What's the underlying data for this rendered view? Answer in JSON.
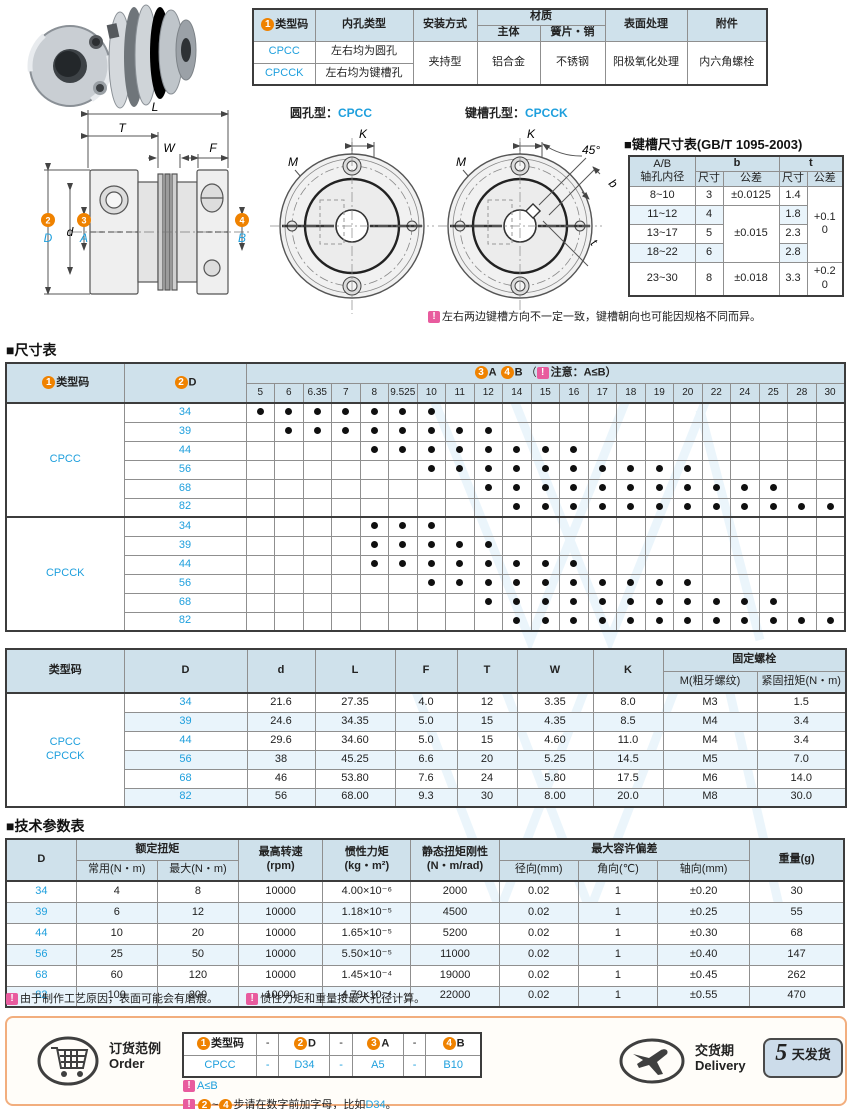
{
  "spec_table": {
    "badge1": "1",
    "h_type": "类型码",
    "h_bore": "内孔类型",
    "h_mount": "安装方式",
    "h_material": "材质",
    "h_body": "主体",
    "h_spring": "簧片・销",
    "h_surface": "表面处理",
    "h_accessory": "附件",
    "row1_code": "CPCC",
    "row1_bore": "左右均为圆孔",
    "row2_code": "CPCCK",
    "row2_bore": "左右均为键槽孔",
    "mount": "夹持型",
    "body": "铝合金",
    "spring": "不锈钢",
    "surface": "阳极氧化处理",
    "accessory": "内六角螺栓"
  },
  "diagrams": {
    "round_label": "圆孔型：",
    "round_code": "CPCC",
    "key_label": "键槽孔型：",
    "key_code": "CPCCK",
    "L": "L",
    "T": "T",
    "W": "W",
    "F": "F",
    "d": "d",
    "D": "D",
    "A": "A",
    "B": "B",
    "M": "M",
    "K": "K",
    "deg45": "45°",
    "b": "b",
    "t": "t",
    "n2": "2",
    "n3": "3",
    "n4": "4"
  },
  "keyway_table": {
    "title": "■键槽尺寸表(GB/T 1095-2003)",
    "h_col1": "A/B\n轴孔内径",
    "h_b": "b",
    "h_t": "t",
    "h_size": "尺寸",
    "h_tol": "公差",
    "rows": [
      {
        "range": "8~10",
        "b": "3",
        "t": "1.4"
      },
      {
        "range": "11~12",
        "b": "4",
        "t": "1.8"
      },
      {
        "range": "13~17",
        "b": "5",
        "t": "2.3"
      },
      {
        "range": "18~22",
        "b": "6",
        "t": "2.8"
      },
      {
        "range": "23~30",
        "b": "8",
        "t": "3.3"
      }
    ],
    "b_tol_1": "±0.0125",
    "b_tol_2": "±0.015",
    "b_tol_3": "±0.018",
    "t_tol_1": "+0.1\n0",
    "t_tol_2": "+0.2\n0"
  },
  "keyway_note": {
    "icon": "!",
    "text": "左右两边键槽方向不一定一致，键槽朝向也可能因规格不同而异。"
  },
  "size_table": {
    "title": "■尺寸表",
    "badge1": "1",
    "badge2": "2",
    "badge3": "3",
    "badge4": "4",
    "h_type": "类型码",
    "h_d": "D",
    "ab_a": "A",
    "ab_b": "B",
    "ab_paren": "（",
    "ab_icon": "!",
    "ab_note": "注意：A≤B）",
    "bores": [
      "5",
      "6",
      "6.35",
      "7",
      "8",
      "9.525",
      "10",
      "11",
      "12",
      "14",
      "15",
      "16",
      "17",
      "18",
      "19",
      "20",
      "22",
      "24",
      "25",
      "28",
      "30"
    ],
    "groups": [
      {
        "code": "CPCC",
        "rows": [
          {
            "d": "34",
            "available": [
              "5",
              "6",
              "6.35",
              "7",
              "8",
              "9.525",
              "10"
            ]
          },
          {
            "d": "39",
            "available": [
              "6",
              "6.35",
              "7",
              "8",
              "9.525",
              "10",
              "11",
              "12"
            ]
          },
          {
            "d": "44",
            "available": [
              "8",
              "9.525",
              "10",
              "11",
              "12",
              "14",
              "15",
              "16"
            ]
          },
          {
            "d": "56",
            "available": [
              "10",
              "11",
              "12",
              "14",
              "15",
              "16",
              "17",
              "18",
              "19",
              "20"
            ]
          },
          {
            "d": "68",
            "available": [
              "12",
              "14",
              "15",
              "16",
              "17",
              "18",
              "19",
              "20",
              "22",
              "24",
              "25"
            ]
          },
          {
            "d": "82",
            "available": [
              "14",
              "15",
              "16",
              "17",
              "18",
              "19",
              "20",
              "22",
              "24",
              "25",
              "28",
              "30"
            ]
          }
        ]
      },
      {
        "code": "CPCCK",
        "rows": [
          {
            "d": "34",
            "available": [
              "8",
              "9.525",
              "10"
            ]
          },
          {
            "d": "39",
            "available": [
              "8",
              "9.525",
              "10",
              "11",
              "12"
            ]
          },
          {
            "d": "44",
            "available": [
              "8",
              "9.525",
              "10",
              "11",
              "12",
              "14",
              "15",
              "16"
            ]
          },
          {
            "d": "56",
            "available": [
              "10",
              "11",
              "12",
              "14",
              "15",
              "16",
              "17",
              "18",
              "19",
              "20"
            ]
          },
          {
            "d": "68",
            "available": [
              "12",
              "14",
              "15",
              "16",
              "17",
              "18",
              "19",
              "20",
              "22",
              "24",
              "25"
            ]
          },
          {
            "d": "82",
            "available": [
              "14",
              "15",
              "16",
              "17",
              "18",
              "19",
              "20",
              "22",
              "24",
              "25",
              "28",
              "30"
            ]
          }
        ]
      }
    ]
  },
  "dim_table": {
    "h_type": "类型码",
    "h_cols": [
      "D",
      "d",
      "L",
      "F",
      "T",
      "W",
      "K"
    ],
    "h_bolt": "固定螺栓",
    "h_bolt_m": "M(粗牙螺纹)",
    "h_bolt_tq": "紧固扭矩(N・m)",
    "type_code": "CPCC\nCPCCK",
    "rows": [
      [
        "34",
        "21.6",
        "27.35",
        "4.0",
        "12",
        "3.35",
        "8.0",
        "M3",
        "1.5"
      ],
      [
        "39",
        "24.6",
        "34.35",
        "5.0",
        "15",
        "4.35",
        "8.5",
        "M4",
        "3.4"
      ],
      [
        "44",
        "29.6",
        "34.60",
        "5.0",
        "15",
        "4.60",
        "11.0",
        "M4",
        "3.4"
      ],
      [
        "56",
        "38",
        "45.25",
        "6.6",
        "20",
        "5.25",
        "14.5",
        "M5",
        "7.0"
      ],
      [
        "68",
        "46",
        "53.80",
        "7.6",
        "24",
        "5.80",
        "17.5",
        "M6",
        "14.0"
      ],
      [
        "82",
        "56",
        "68.00",
        "9.3",
        "30",
        "8.00",
        "20.0",
        "M8",
        "30.0"
      ]
    ]
  },
  "tech_table": {
    "title": "■技术参数表",
    "h_d": "D",
    "h_torque": "额定扭矩",
    "h_torque_normal": "常用(N・m)",
    "h_torque_max": "最大(N・m)",
    "h_speed": "最高转速\n(rpm)",
    "h_inertia": "惯性力矩\n(kg・m²)",
    "h_stiff": "静态扭矩刚性\n(N・m/rad)",
    "h_dev": "最大容许偏差",
    "h_radial": "径向(mm)",
    "h_angular": "角向(℃)",
    "h_axial": "轴向(mm)",
    "h_weight": "重量(g)",
    "rows": [
      [
        "34",
        "4",
        "8",
        "10000",
        "4.00×10⁻⁶",
        "2000",
        "0.02",
        "1",
        "±0.20",
        "30"
      ],
      [
        "39",
        "6",
        "12",
        "10000",
        "1.18×10⁻⁵",
        "4500",
        "0.02",
        "1",
        "±0.25",
        "55"
      ],
      [
        "44",
        "10",
        "20",
        "10000",
        "1.65×10⁻⁵",
        "5200",
        "0.02",
        "1",
        "±0.30",
        "68"
      ],
      [
        "56",
        "25",
        "50",
        "10000",
        "5.50×10⁻⁵",
        "11000",
        "0.02",
        "1",
        "±0.40",
        "147"
      ],
      [
        "68",
        "60",
        "120",
        "10000",
        "1.45×10⁻⁴",
        "19000",
        "0.02",
        "1",
        "±0.45",
        "262"
      ],
      [
        "82",
        "100",
        "200",
        "10000",
        "4.79×10⁻⁴",
        "22000",
        "0.02",
        "1",
        "±0.55",
        "470"
      ]
    ],
    "note1_icon": "!",
    "note1": "由于制作工艺原因，表面可能会有磨痕。",
    "note2_icon": "!",
    "note2": "惯性力矩和重量按最大孔径计算。"
  },
  "order": {
    "label_cn": "订货范例",
    "label_en": "Order",
    "badge1": "1",
    "badge2": "2",
    "badge3": "3",
    "badge4": "4",
    "h_type": "类型码",
    "h_d": "D",
    "h_a": "A",
    "h_b": "B",
    "dash": "-",
    "ex_type": "CPCC",
    "ex_d": "D34",
    "ex_a": "A5",
    "ex_b": "B10",
    "note1_icon": "!",
    "note1": "A≤B",
    "note2_icon": "!",
    "note2_from": "2",
    "note2_tilde": "~",
    "note2_to": "4",
    "note2_text": "步请在数字前加字母，比如",
    "note2_example": "D34",
    "note2_period": "。",
    "delivery_cn": "交货期",
    "delivery_en": "Delivery",
    "delivery_num": "5",
    "delivery_unit": "天发货"
  },
  "colors": {
    "accent_blue": "#1e9fdd",
    "badge_orange": "#ef8200",
    "note_pink": "#e85b9e",
    "header_bg": "#cfe1eb",
    "alt_row": "#e9f4fb",
    "order_border": "#f2ae7e"
  }
}
